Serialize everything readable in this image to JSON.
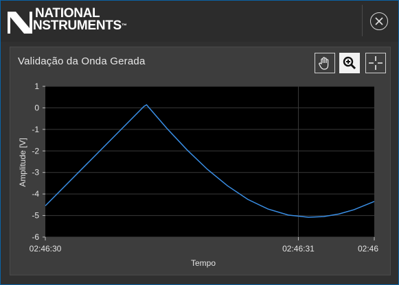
{
  "window": {
    "logo_line1": "NATIONAL",
    "logo_line2": "INSTRUMENTS",
    "logo_tm": "™"
  },
  "graph": {
    "title": "Validação da Onda Gerada"
  },
  "chart_data": {
    "type": "line",
    "xlabel": "Tempo",
    "ylabel": "Amplitude [V]",
    "ylim": [
      -6,
      1
    ],
    "y_ticks": [
      "1",
      "0",
      "-1",
      "-2",
      "-3",
      "-4",
      "-5",
      "-6"
    ],
    "x_ticks": [
      "02:46:30",
      "02:46:31",
      "02:46"
    ],
    "x_tick_seconds": [
      0,
      1,
      1.3
    ],
    "xlim_seconds": [
      0,
      1.3
    ],
    "grid": true,
    "series": [
      {
        "color": "#3a8fe6",
        "x_seconds": [
          0.0,
          0.39,
          0.4,
          0.48,
          0.56,
          0.64,
          0.72,
          0.8,
          0.88,
          0.96,
          1.04,
          1.1,
          1.16,
          1.22,
          1.3
        ],
        "values": [
          -4.55,
          0.07,
          0.14,
          -0.95,
          -1.95,
          -2.85,
          -3.62,
          -4.25,
          -4.7,
          -4.98,
          -5.08,
          -5.05,
          -4.93,
          -4.73,
          -4.35
        ]
      }
    ]
  }
}
